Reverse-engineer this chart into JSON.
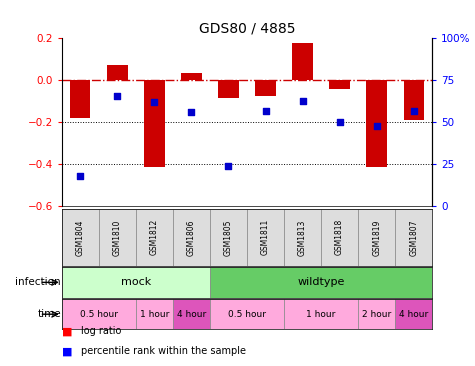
{
  "title": "GDS80 / 4885",
  "samples": [
    "GSM1804",
    "GSM1810",
    "GSM1812",
    "GSM1806",
    "GSM1805",
    "GSM1811",
    "GSM1813",
    "GSM1818",
    "GSM1819",
    "GSM1807"
  ],
  "log_ratio": [
    -0.18,
    0.075,
    -0.41,
    0.035,
    -0.085,
    -0.075,
    0.18,
    -0.04,
    -0.41,
    -0.19
  ],
  "percentile": [
    18,
    66,
    62,
    56,
    24,
    57,
    63,
    50,
    48,
    57
  ],
  "ylim_left": [
    -0.6,
    0.2
  ],
  "ylim_right": [
    0,
    100
  ],
  "yticks_left": [
    -0.6,
    -0.4,
    -0.2,
    0.0,
    0.2
  ],
  "yticks_right": [
    0,
    25,
    50,
    75,
    100
  ],
  "bar_color": "#cc0000",
  "dot_color": "#0000cc",
  "hline_color": "#cc0000",
  "dotted_line_color": "#000000",
  "infection_groups": [
    {
      "label": "mock",
      "start": 0,
      "end": 4,
      "color": "#ccffcc"
    },
    {
      "label": "wildtype",
      "start": 4,
      "end": 10,
      "color": "#66cc66"
    }
  ],
  "time_groups": [
    {
      "label": "0.5 hour",
      "start": 0,
      "end": 2,
      "color": "#ffaadd"
    },
    {
      "label": "1 hour",
      "start": 2,
      "end": 3,
      "color": "#ffaadd"
    },
    {
      "label": "4 hour",
      "start": 3,
      "end": 4,
      "color": "#dd55bb"
    },
    {
      "label": "0.5 hour",
      "start": 4,
      "end": 6,
      "color": "#ffaadd"
    },
    {
      "label": "1 hour",
      "start": 6,
      "end": 8,
      "color": "#ffaadd"
    },
    {
      "label": "2 hour",
      "start": 8,
      "end": 9,
      "color": "#ffaadd"
    },
    {
      "label": "4 hour",
      "start": 9,
      "end": 10,
      "color": "#dd55bb"
    }
  ],
  "legend_items": [
    {
      "label": "log ratio",
      "color": "#cc0000"
    },
    {
      "label": "percentile rank within the sample",
      "color": "#0000cc"
    }
  ]
}
